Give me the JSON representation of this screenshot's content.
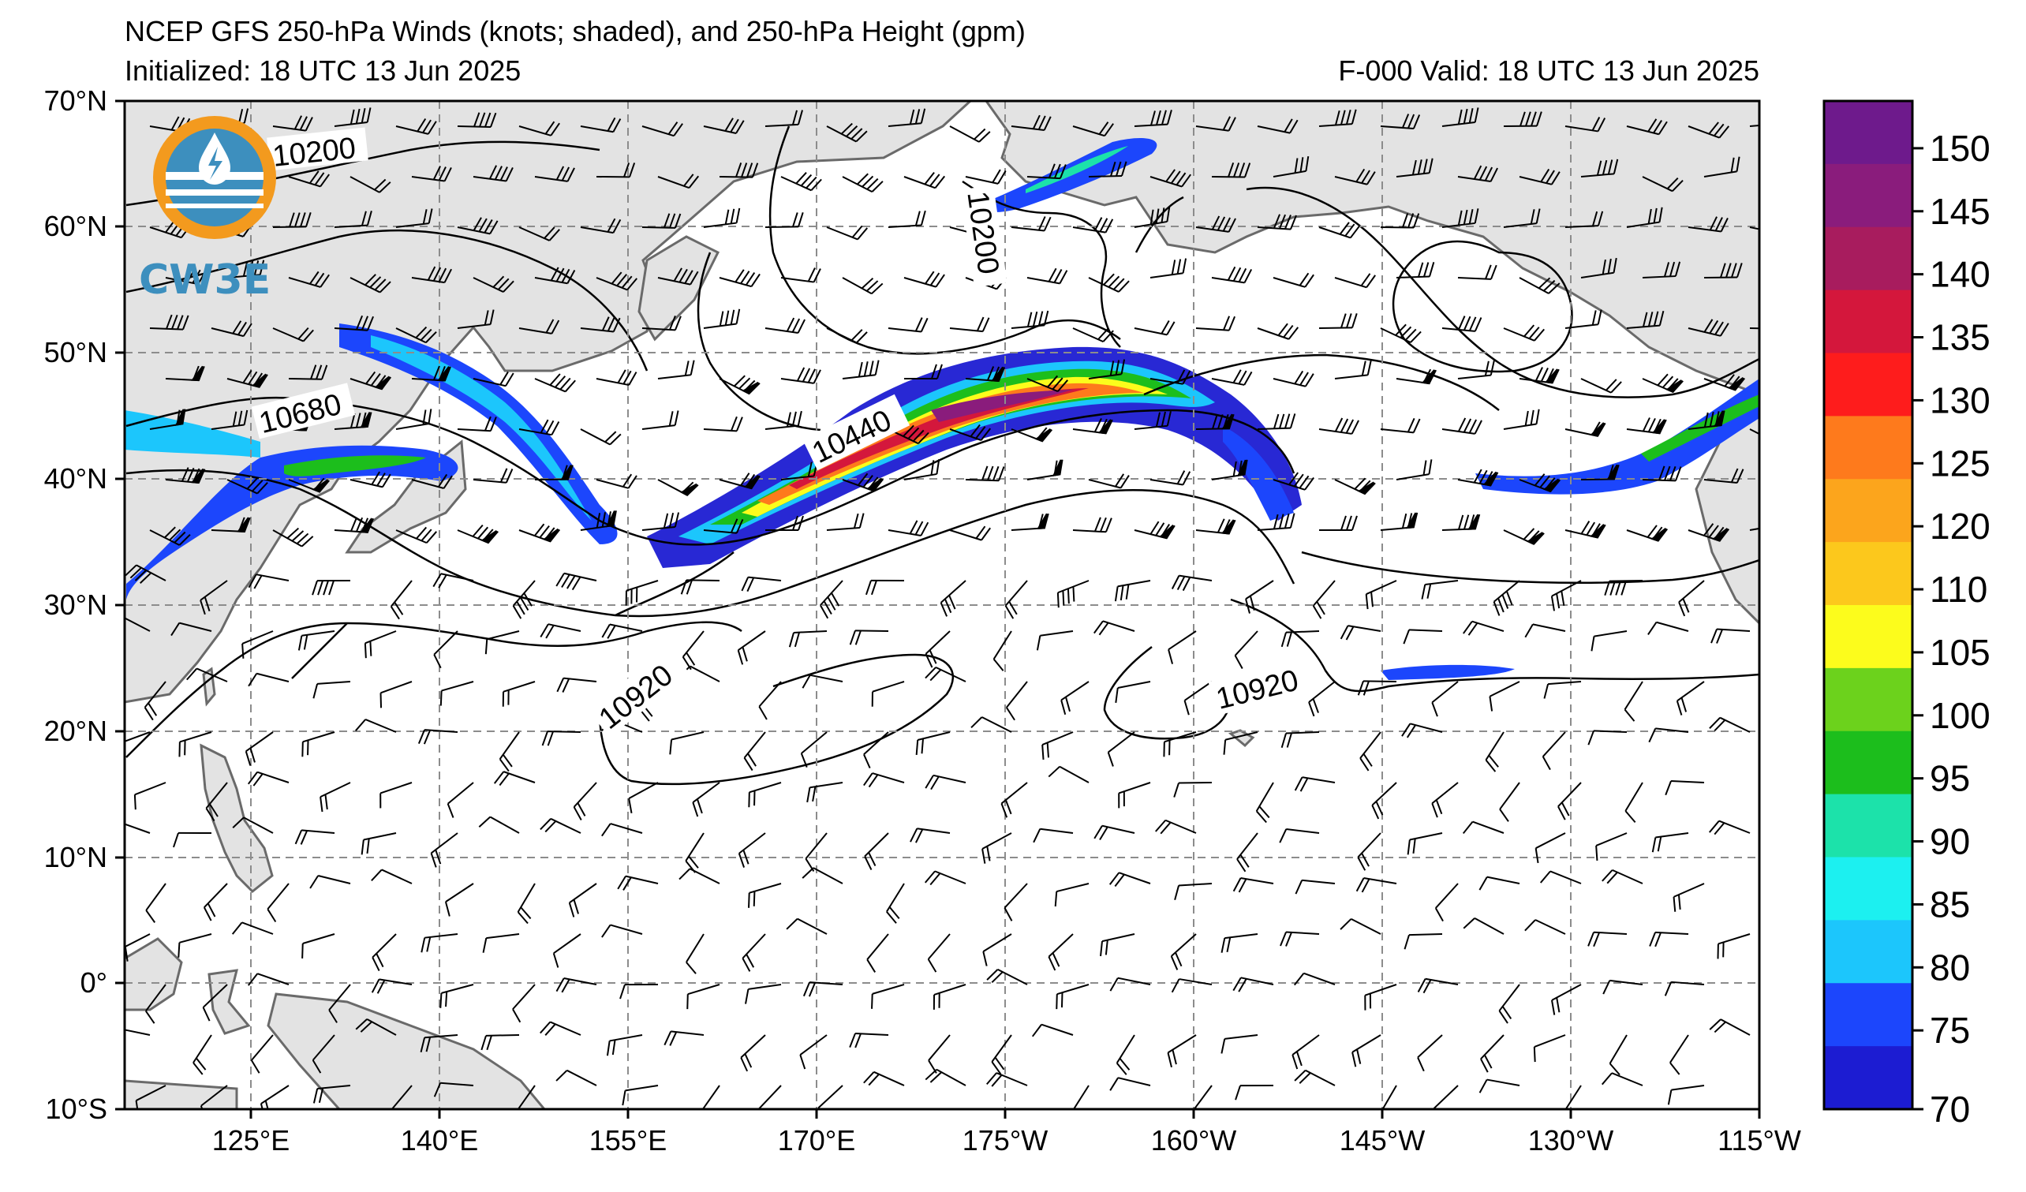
{
  "title": "NCEP GFS 250-hPa Winds (knots; shaded), and 250-hPa Height (gpm)",
  "initialized": "Initialized: 18 UTC 13 Jun 2025",
  "forecast_valid": "F-000  Valid: 18 UTC 13 Jun 2025",
  "logo_text": "CW3E",
  "latitude_labels": [
    "70°N",
    "60°N",
    "50°N",
    "40°N",
    "30°N",
    "20°N",
    "10°N",
    "0°",
    "10°S"
  ],
  "longitude_labels": [
    "125°E",
    "140°E",
    "155°E",
    "170°E",
    "175°W",
    "160°W",
    "145°W",
    "130°W",
    "115°W"
  ],
  "contour_labels": [
    "10200",
    "10200",
    "10680",
    "10440",
    "10920",
    "10920"
  ],
  "colorbar": {
    "tick_labels": [
      "150",
      "145",
      "140",
      "135",
      "130",
      "125",
      "120",
      "110",
      "105",
      "100",
      "95",
      "90",
      "85",
      "80",
      "75",
      "70"
    ],
    "colors": [
      "#6e1a8c",
      "#8a1c7c",
      "#a81c5e",
      "#d4173c",
      "#fe1c1c",
      "#fe7a1c",
      "#fca51c",
      "#fcc81c",
      "#fcfc1c",
      "#6cd21c",
      "#1cbe1c",
      "#1ce2aa",
      "#1cf0f0",
      "#1cc6fc",
      "#1c46fc",
      "#1c1cd2"
    ]
  },
  "colors": {
    "land": "#e3e3e3",
    "coast": "#6a6a6a",
    "grid": "#8c8c8c",
    "contour": "#000000"
  }
}
